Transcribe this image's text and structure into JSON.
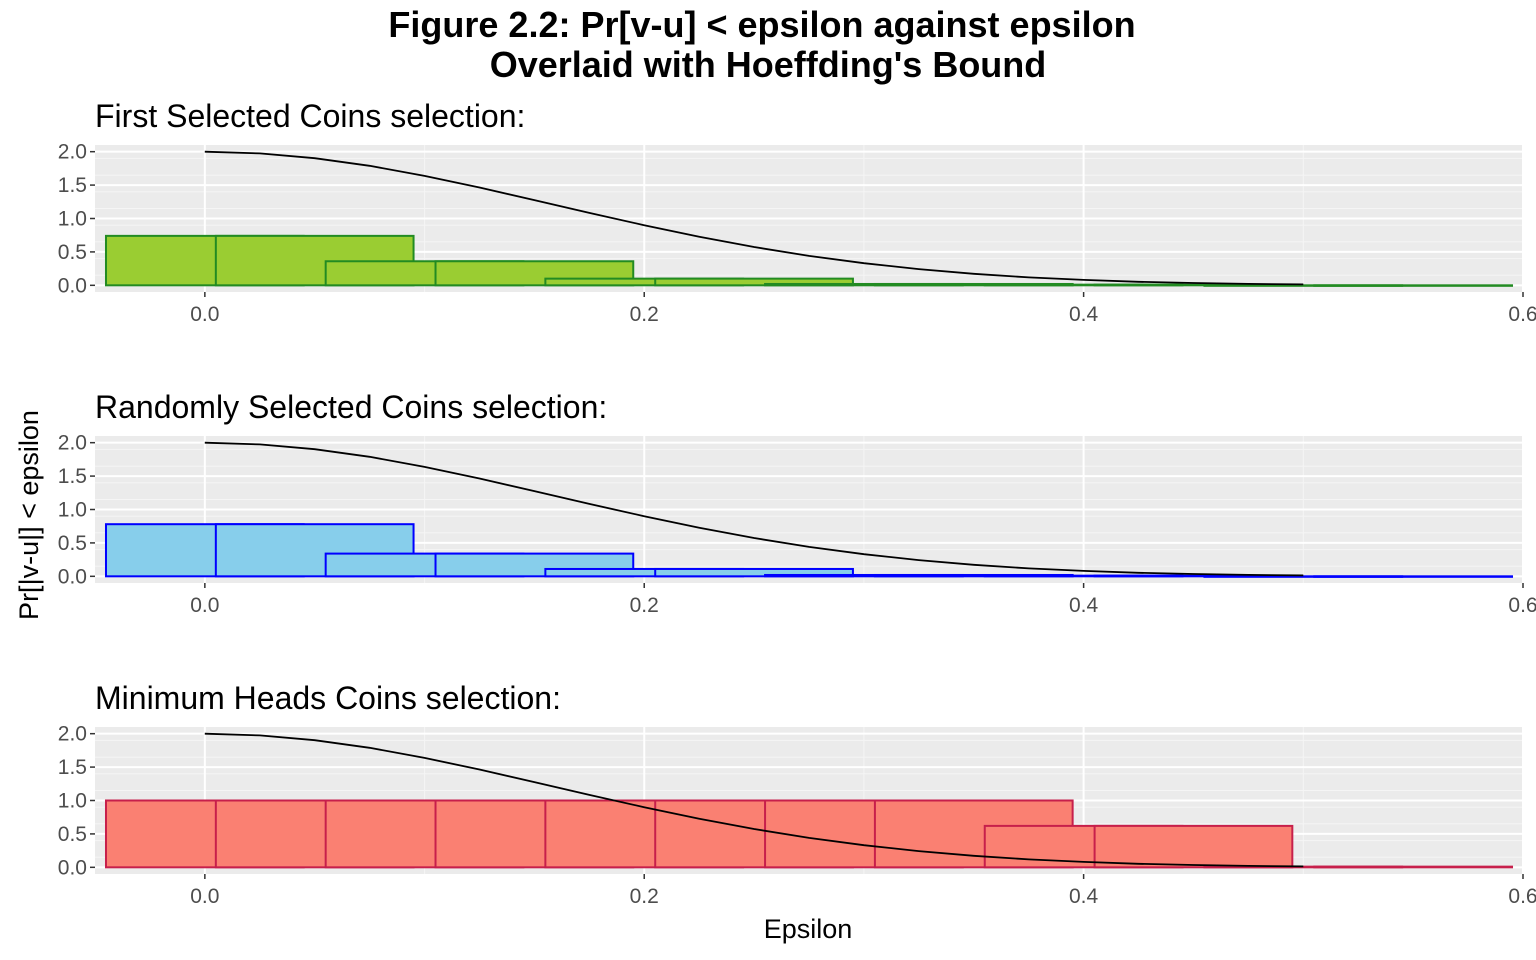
{
  "figure": {
    "title_line1": "Figure 2.2: Pr[v-u] < epsilon against epsilon",
    "title_line2": "Overlaid with Hoeffding's Bound",
    "xlabel": "Epsilon",
    "ylabel": "Pr[|v-u|] < epsilon"
  },
  "chart_data": [
    {
      "type": "bar",
      "subtitle": "First Selected Coins selection:",
      "x": [
        0.0,
        0.05,
        0.1,
        0.15,
        0.2,
        0.25,
        0.3,
        0.35,
        0.4,
        0.45,
        0.5,
        0.55
      ],
      "values": [
        0.74,
        0.74,
        0.36,
        0.36,
        0.1,
        0.1,
        0.02,
        0.02,
        0.01,
        0.01,
        0.0,
        0.0
      ],
      "bound": {
        "x": [
          0.0,
          0.025,
          0.05,
          0.075,
          0.1,
          0.125,
          0.15,
          0.175,
          0.2,
          0.225,
          0.25,
          0.275,
          0.3,
          0.325,
          0.35,
          0.375,
          0.4,
          0.425,
          0.45,
          0.475,
          0.5
        ],
        "y": [
          2.0,
          1.975,
          1.902,
          1.789,
          1.637,
          1.464,
          1.275,
          1.084,
          0.899,
          0.728,
          0.573,
          0.44,
          0.331,
          0.242,
          0.172,
          0.119,
          0.081,
          0.053,
          0.034,
          0.021,
          0.013
        ]
      },
      "fill": "#9acd32",
      "stroke": "#228b22",
      "line_color": "#000000",
      "yticks": [
        "0.0",
        "0.5",
        "1.0",
        "1.5",
        "2.0"
      ],
      "xticks": [
        "0.0",
        "0.2",
        "0.4",
        "0.6"
      ],
      "xlim": [
        -0.05,
        0.6
      ],
      "ylim": [
        -0.1,
        2.1
      ]
    },
    {
      "type": "bar",
      "subtitle": "Randomly Selected Coins selection:",
      "x": [
        0.0,
        0.05,
        0.1,
        0.15,
        0.2,
        0.25,
        0.3,
        0.35,
        0.4,
        0.45,
        0.5,
        0.55
      ],
      "values": [
        0.78,
        0.78,
        0.34,
        0.34,
        0.11,
        0.11,
        0.02,
        0.02,
        0.01,
        0.01,
        0.0,
        0.0
      ],
      "bound": {
        "x": [
          0.0,
          0.025,
          0.05,
          0.075,
          0.1,
          0.125,
          0.15,
          0.175,
          0.2,
          0.225,
          0.25,
          0.275,
          0.3,
          0.325,
          0.35,
          0.375,
          0.4,
          0.425,
          0.45,
          0.475,
          0.5
        ],
        "y": [
          2.0,
          1.975,
          1.902,
          1.789,
          1.637,
          1.464,
          1.275,
          1.084,
          0.899,
          0.728,
          0.573,
          0.44,
          0.331,
          0.242,
          0.172,
          0.119,
          0.081,
          0.053,
          0.034,
          0.021,
          0.013
        ]
      },
      "fill": "#87ceeb",
      "stroke": "#0000ff",
      "line_color": "#000000",
      "yticks": [
        "0.0",
        "0.5",
        "1.0",
        "1.5",
        "2.0"
      ],
      "xticks": [
        "0.0",
        "0.2",
        "0.4",
        "0.6"
      ],
      "xlim": [
        -0.05,
        0.6
      ],
      "ylim": [
        -0.1,
        2.1
      ]
    },
    {
      "type": "bar",
      "subtitle": "Minimum Heads Coins selection:",
      "x": [
        0.0,
        0.05,
        0.1,
        0.15,
        0.2,
        0.25,
        0.3,
        0.35,
        0.4,
        0.45,
        0.5,
        0.55
      ],
      "values": [
        1.0,
        1.0,
        1.0,
        1.0,
        1.0,
        1.0,
        1.0,
        1.0,
        0.62,
        0.62,
        0.01,
        0.01
      ],
      "bound": {
        "x": [
          0.0,
          0.025,
          0.05,
          0.075,
          0.1,
          0.125,
          0.15,
          0.175,
          0.2,
          0.225,
          0.25,
          0.275,
          0.3,
          0.325,
          0.35,
          0.375,
          0.4,
          0.425,
          0.45,
          0.475,
          0.5
        ],
        "y": [
          2.0,
          1.975,
          1.902,
          1.789,
          1.637,
          1.464,
          1.275,
          1.084,
          0.899,
          0.728,
          0.573,
          0.44,
          0.331,
          0.242,
          0.172,
          0.119,
          0.081,
          0.053,
          0.034,
          0.021,
          0.013
        ]
      },
      "fill": "#fa8072",
      "stroke": "#c71f4b",
      "line_color": "#000000",
      "yticks": [
        "0.0",
        "0.5",
        "1.0",
        "1.5",
        "2.0"
      ],
      "xticks": [
        "0.0",
        "0.2",
        "0.4",
        "0.6"
      ],
      "xlim": [
        -0.05,
        0.6
      ],
      "ylim": [
        -0.1,
        2.1
      ]
    }
  ]
}
